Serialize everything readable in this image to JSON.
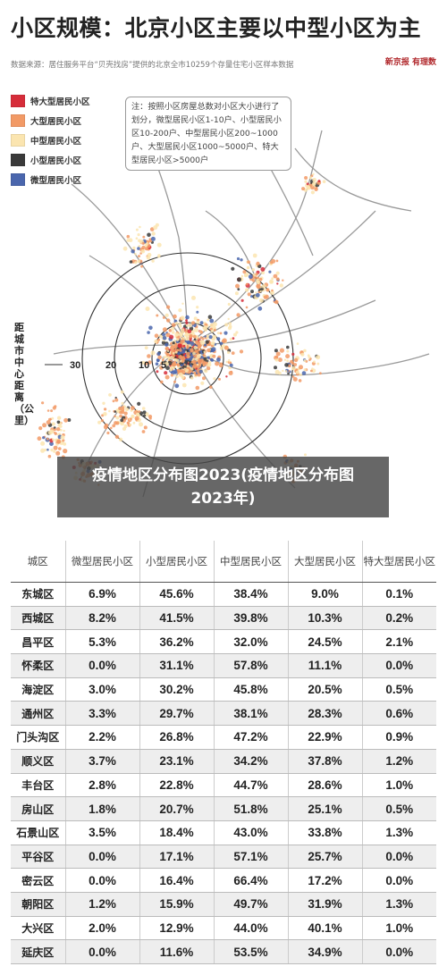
{
  "title": "小区规模：北京小区主要以中型小区为主",
  "source": "数据来源：居住服务平台“贝壳找房”提供的北京全市10259个存量住宅小区样本数据",
  "logo": "新京报 有理数",
  "legend": [
    {
      "label": "特大型居民小区",
      "color": "#d62d3a"
    },
    {
      "label": "大型居民小区",
      "color": "#f29a66"
    },
    {
      "label": "中型居民小区",
      "color": "#fbe5b0"
    },
    {
      "label": "小型居民小区",
      "color": "#3a3a3a"
    },
    {
      "label": "微型居民小区",
      "color": "#4a66ad"
    }
  ],
  "note": "注：按照小区房屋总数对小区大小进行了划分，微型居民小区1-10户、小型居民小区10-200户、中型居民小区200~1000户、大型居民小区1000~5000户、特大型居民小区>5000户",
  "map": {
    "axis_label": "距城市中心距离（公里）",
    "ring_labels": [
      "30",
      "20",
      "10",
      "5"
    ]
  },
  "overlay": "疫情地区分布图2023(疫情地区分布图2023年)",
  "chart_data": {
    "type": "table",
    "columns": [
      "城区",
      "微型居民小区",
      "小型居民小区",
      "中型居民小区",
      "大型居民小区",
      "特大型居民小区"
    ],
    "rows": [
      [
        "东城区",
        "6.9%",
        "45.6%",
        "38.4%",
        "9.0%",
        "0.1%"
      ],
      [
        "西城区",
        "8.2%",
        "41.5%",
        "39.8%",
        "10.3%",
        "0.2%"
      ],
      [
        "昌平区",
        "5.3%",
        "36.2%",
        "32.0%",
        "24.5%",
        "2.1%"
      ],
      [
        "怀柔区",
        "0.0%",
        "31.1%",
        "57.8%",
        "11.1%",
        "0.0%"
      ],
      [
        "海淀区",
        "3.0%",
        "30.2%",
        "45.8%",
        "20.5%",
        "0.5%"
      ],
      [
        "通州区",
        "3.3%",
        "29.7%",
        "38.1%",
        "28.3%",
        "0.6%"
      ],
      [
        "门头沟区",
        "2.2%",
        "26.8%",
        "47.2%",
        "22.9%",
        "0.9%"
      ],
      [
        "顺义区",
        "3.7%",
        "23.1%",
        "34.2%",
        "37.8%",
        "1.2%"
      ],
      [
        "丰台区",
        "2.8%",
        "22.8%",
        "44.7%",
        "28.6%",
        "1.0%"
      ],
      [
        "房山区",
        "1.8%",
        "20.7%",
        "51.8%",
        "25.1%",
        "0.5%"
      ],
      [
        "石景山区",
        "3.5%",
        "18.4%",
        "43.0%",
        "33.8%",
        "1.3%"
      ],
      [
        "平谷区",
        "0.0%",
        "17.1%",
        "57.1%",
        "25.7%",
        "0.0%"
      ],
      [
        "密云区",
        "0.0%",
        "16.4%",
        "66.4%",
        "17.2%",
        "0.0%"
      ],
      [
        "朝阳区",
        "1.2%",
        "15.9%",
        "49.7%",
        "31.9%",
        "1.3%"
      ],
      [
        "大兴区",
        "2.0%",
        "12.9%",
        "44.0%",
        "40.1%",
        "1.0%"
      ],
      [
        "延庆区",
        "0.0%",
        "11.6%",
        "53.5%",
        "34.9%",
        "0.0%"
      ]
    ]
  }
}
